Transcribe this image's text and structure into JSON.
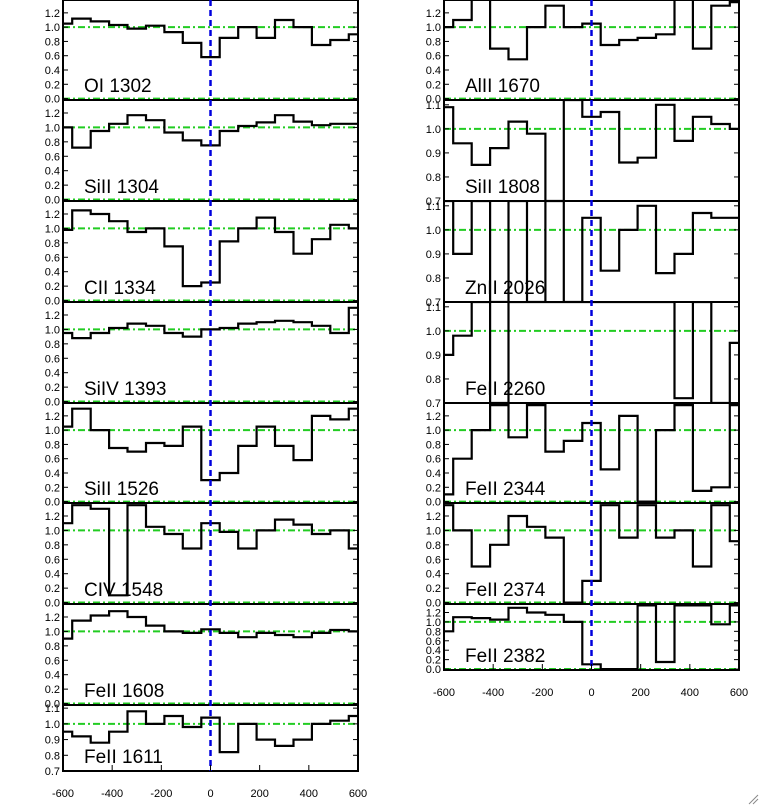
{
  "chart_data": {
    "type": "line",
    "x_range": [
      -600,
      600
    ],
    "x_ticks": [
      "-600",
      "-400",
      "-200",
      "0",
      "200",
      "400",
      "600"
    ],
    "zero_line_color": "#0000dd",
    "reference_line_color": "#22cc22",
    "line_color": "#000000",
    "left_column": [
      {
        "name": "OI 1302",
        "ylim": [
          -0.02,
          1.38
        ],
        "y_ticks": [
          0.0,
          0.2,
          0.4,
          0.6,
          0.8,
          1.0,
          1.2
        ],
        "tick_labels": [
          "0.0",
          "0.2",
          "0.4",
          "0.6",
          "0.8",
          "1.0",
          "1.2"
        ],
        "ref": [
          0.0,
          1.0
        ],
        "x": [
          -600,
          -525,
          -450,
          -375,
          -300,
          -225,
          -150,
          -75,
          0,
          75,
          150,
          225,
          300,
          375,
          450,
          525,
          600
        ],
        "y": [
          1.05,
          1.12,
          1.08,
          1.03,
          0.98,
          1.02,
          0.93,
          0.78,
          0.58,
          0.85,
          1.0,
          0.85,
          1.1,
          1.0,
          0.75,
          0.82,
          0.9
        ]
      },
      {
        "name": "SiII 1304",
        "ylim": [
          -0.02,
          1.38
        ],
        "y_ticks": [
          0.0,
          0.2,
          0.4,
          0.6,
          0.8,
          1.0,
          1.2
        ],
        "tick_labels": [
          "0.0",
          "0.2",
          "0.4",
          "0.6",
          "0.8",
          "1.0",
          "1.2"
        ],
        "ref": [
          0.0,
          1.0
        ],
        "x": [
          -600,
          -525,
          -450,
          -375,
          -300,
          -225,
          -150,
          -75,
          0,
          75,
          150,
          225,
          300,
          375,
          450,
          525,
          600
        ],
        "y": [
          1.0,
          0.72,
          0.95,
          1.05,
          1.17,
          1.1,
          0.93,
          0.82,
          0.75,
          0.95,
          1.02,
          1.07,
          1.17,
          1.08,
          1.03,
          1.05,
          1.05
        ]
      },
      {
        "name": "CII 1334",
        "ylim": [
          -0.02,
          1.38
        ],
        "y_ticks": [
          0.0,
          0.2,
          0.4,
          0.6,
          0.8,
          1.0,
          1.2
        ],
        "tick_labels": [
          "0.0",
          "0.2",
          "0.4",
          "0.6",
          "0.8",
          "1.0",
          "1.2"
        ],
        "ref": [
          0.0,
          1.0
        ],
        "x": [
          -600,
          -525,
          -450,
          -375,
          -300,
          -225,
          -150,
          -75,
          0,
          75,
          150,
          225,
          300,
          375,
          450,
          525,
          600
        ],
        "y": [
          0.98,
          1.25,
          1.2,
          1.1,
          0.95,
          1.0,
          0.75,
          0.2,
          0.25,
          0.82,
          1.0,
          1.15,
          0.95,
          0.65,
          0.85,
          1.05,
          1.0
        ]
      },
      {
        "name": "SiIV 1393",
        "ylim": [
          -0.02,
          1.38
        ],
        "y_ticks": [
          0.0,
          0.2,
          0.4,
          0.6,
          0.8,
          1.0,
          1.2
        ],
        "tick_labels": [
          "0.0",
          "0.2",
          "0.4",
          "0.6",
          "0.8",
          "1.0",
          "1.2"
        ],
        "ref": [
          0.0,
          1.0
        ],
        "x": [
          -600,
          -525,
          -450,
          -375,
          -300,
          -225,
          -150,
          -75,
          0,
          75,
          150,
          225,
          300,
          375,
          450,
          525,
          600
        ],
        "y": [
          0.95,
          0.88,
          0.95,
          1.02,
          1.08,
          1.05,
          0.95,
          0.9,
          1.0,
          1.02,
          1.08,
          1.1,
          1.12,
          1.1,
          1.05,
          0.95,
          1.3
        ]
      },
      {
        "name": "SiII 1526",
        "ylim": [
          -0.02,
          1.38
        ],
        "y_ticks": [
          0.0,
          0.2,
          0.4,
          0.6,
          0.8,
          1.0,
          1.2
        ],
        "tick_labels": [
          "0.0",
          "0.2",
          "0.4",
          "0.6",
          "0.8",
          "1.0",
          "1.2"
        ],
        "ref": [
          0.0,
          1.0
        ],
        "x": [
          -600,
          -525,
          -450,
          -375,
          -300,
          -225,
          -150,
          -75,
          0,
          75,
          150,
          225,
          300,
          375,
          450,
          525,
          600
        ],
        "y": [
          1.05,
          1.3,
          1.0,
          0.75,
          0.7,
          0.82,
          0.78,
          1.05,
          0.3,
          0.4,
          0.78,
          1.05,
          0.78,
          0.58,
          1.2,
          1.15,
          1.3
        ]
      },
      {
        "name": "CIV 1548",
        "ylim": [
          -0.02,
          1.38
        ],
        "y_ticks": [
          0.0,
          0.2,
          0.4,
          0.6,
          0.8,
          1.0,
          1.2
        ],
        "tick_labels": [
          "0.0",
          "0.2",
          "0.4",
          "0.6",
          "0.8",
          "1.0",
          "1.2"
        ],
        "ref": [
          0.0,
          1.0
        ],
        "x": [
          -600,
          -525,
          -450,
          -375,
          -300,
          -225,
          -150,
          -75,
          0,
          75,
          150,
          225,
          300,
          375,
          450,
          525,
          600
        ],
        "y": [
          1.1,
          1.35,
          1.3,
          0.1,
          1.35,
          1.05,
          0.95,
          0.75,
          1.1,
          0.98,
          0.75,
          1.0,
          1.15,
          1.08,
          0.95,
          1.0,
          0.75
        ]
      },
      {
        "name": "FeII 1608",
        "ylim": [
          -0.02,
          1.38
        ],
        "y_ticks": [
          0.0,
          0.2,
          0.4,
          0.6,
          0.8,
          1.0,
          1.2
        ],
        "tick_labels": [
          "0.0",
          "0.2",
          "0.4",
          "0.6",
          "0.8",
          "1.0",
          "1.2"
        ],
        "ref": [
          0.0,
          1.0
        ],
        "x": [
          -600,
          -525,
          -450,
          -375,
          -300,
          -225,
          -150,
          -75,
          0,
          75,
          150,
          225,
          300,
          375,
          450,
          525,
          600
        ],
        "y": [
          0.9,
          1.15,
          1.22,
          1.28,
          1.2,
          1.08,
          1.0,
          0.98,
          1.03,
          0.98,
          0.92,
          0.98,
          0.95,
          0.92,
          0.98,
          1.02,
          1.0
        ]
      },
      {
        "name": "FeII 1611",
        "ylim": [
          0.7,
          1.12
        ],
        "y_ticks": [
          0.7,
          0.8,
          0.9,
          1.0,
          1.1
        ],
        "tick_labels": [
          "0.7",
          "0.8",
          "0.9",
          "1.0",
          "1.1"
        ],
        "ref": [
          1.0
        ],
        "x": [
          -600,
          -525,
          -450,
          -375,
          -300,
          -225,
          -150,
          -75,
          0,
          75,
          150,
          225,
          300,
          375,
          450,
          525,
          600
        ],
        "y": [
          0.95,
          0.92,
          0.88,
          0.95,
          1.08,
          1.0,
          1.05,
          0.98,
          1.04,
          0.82,
          1.0,
          0.9,
          0.86,
          0.9,
          1.0,
          1.02,
          1.05
        ]
      }
    ],
    "right_column": [
      {
        "name": "AlII 1670",
        "ylim": [
          -0.02,
          1.38
        ],
        "y_ticks": [
          0.0,
          0.2,
          0.4,
          0.6,
          0.8,
          1.0,
          1.2
        ],
        "tick_labels": [
          "0.0",
          "0.2",
          "0.4",
          "0.6",
          "0.8",
          "1.0",
          "1.2"
        ],
        "ref": [
          0.0,
          1.0
        ],
        "x": [
          -600,
          -525,
          -450,
          -375,
          -300,
          -225,
          -150,
          -75,
          0,
          75,
          150,
          225,
          300,
          375,
          450,
          525,
          600
        ],
        "y": [
          1.0,
          1.1,
          1.4,
          0.7,
          0.55,
          1.0,
          1.3,
          1.0,
          1.05,
          0.75,
          0.82,
          0.85,
          0.9,
          1.4,
          0.7,
          1.3,
          1.35
        ]
      },
      {
        "name": "SiII 1808",
        "ylim": [
          0.7,
          1.12
        ],
        "y_ticks": [
          0.7,
          0.8,
          0.9,
          1.0,
          1.1
        ],
        "tick_labels": [
          "0.7",
          "0.8",
          "0.9",
          "1.0",
          "1.1"
        ],
        "ref": [
          1.0
        ],
        "x": [
          -600,
          -525,
          -450,
          -375,
          -300,
          -225,
          -150,
          -75,
          0,
          75,
          150,
          225,
          300,
          375,
          450,
          525,
          600
        ],
        "y": [
          1.09,
          0.94,
          0.85,
          0.92,
          1.03,
          0.98,
          0.7,
          1.12,
          1.05,
          1.07,
          0.86,
          0.88,
          1.1,
          0.95,
          1.05,
          1.02,
          1.0
        ]
      },
      {
        "name": "ZnII 2026",
        "ylim": [
          0.7,
          1.12
        ],
        "y_ticks": [
          0.7,
          0.8,
          0.9,
          1.0,
          1.1
        ],
        "tick_labels": [
          "0.7",
          "0.8",
          "0.9",
          "1.0",
          "1.1"
        ],
        "ref": [
          1.0
        ],
        "x": [
          -600,
          -525,
          -450,
          -375,
          -300,
          -225,
          -150,
          -75,
          0,
          75,
          150,
          225,
          300,
          375,
          450,
          525,
          600
        ],
        "y": [
          1.12,
          0.9,
          1.12,
          0.7,
          1.12,
          0.7,
          1.12,
          0.7,
          1.05,
          0.83,
          1.0,
          1.1,
          0.82,
          0.9,
          1.07,
          1.05,
          1.05
        ]
      },
      {
        "name": "FeII 2260",
        "ylim": [
          0.7,
          1.12
        ],
        "y_ticks": [
          0.7,
          0.8,
          0.9,
          1.0,
          1.1
        ],
        "tick_labels": [
          "0.7",
          "0.8",
          "0.9",
          "1.0",
          "1.1"
        ],
        "ref": [
          1.0
        ],
        "x": [
          -600,
          -525,
          -450,
          -375,
          -300,
          -225,
          -150,
          -75,
          0,
          75,
          150,
          225,
          300,
          375,
          450,
          525,
          600
        ],
        "y": [
          0.9,
          0.98,
          1.12,
          0.7,
          1.12,
          1.12,
          1.12,
          1.12,
          1.12,
          1.12,
          1.12,
          1.12,
          1.12,
          0.72,
          1.12,
          0.7,
          0.95
        ]
      },
      {
        "name": "FeII 2344",
        "ylim": [
          -0.02,
          1.38
        ],
        "y_ticks": [
          0.0,
          0.2,
          0.4,
          0.6,
          0.8,
          1.0,
          1.2
        ],
        "tick_labels": [
          "0.0",
          "0.2",
          "0.4",
          "0.6",
          "0.8",
          "1.0",
          "1.2"
        ],
        "ref": [
          0.0,
          1.0
        ],
        "x": [
          -600,
          -525,
          -450,
          -375,
          -300,
          -225,
          -150,
          -75,
          0,
          75,
          150,
          225,
          300,
          375,
          450,
          525,
          600
        ],
        "y": [
          0.1,
          0.6,
          1.0,
          1.35,
          0.9,
          1.35,
          0.7,
          0.85,
          1.1,
          0.45,
          1.2,
          0.0,
          1.0,
          1.35,
          0.15,
          0.2,
          1.35
        ]
      },
      {
        "name": "FeII 2374",
        "ylim": [
          -0.02,
          1.38
        ],
        "y_ticks": [
          0.0,
          0.2,
          0.4,
          0.6,
          0.8,
          1.0,
          1.2
        ],
        "tick_labels": [
          "0.0",
          "0.2",
          "0.4",
          "0.6",
          "0.8",
          "1.0",
          "1.2"
        ],
        "ref": [
          0.0,
          1.0
        ],
        "x": [
          -600,
          -525,
          -450,
          -375,
          -300,
          -225,
          -150,
          -75,
          0,
          75,
          150,
          225,
          300,
          375,
          450,
          525,
          600
        ],
        "y": [
          1.35,
          1.0,
          0.5,
          0.8,
          1.2,
          1.05,
          0.9,
          0.0,
          0.3,
          1.35,
          0.9,
          1.35,
          0.9,
          1.0,
          0.5,
          1.35,
          0.85
        ]
      },
      {
        "name": "FeII 2382",
        "ylim": [
          -0.02,
          1.38
        ],
        "y_ticks": [
          0.0,
          0.2,
          0.4,
          0.6,
          0.8,
          1.0,
          1.2
        ],
        "tick_labels": [
          "0.0",
          "0.2",
          "0.4",
          "0.6",
          "0.8",
          "1.0",
          "1.2"
        ],
        "ref": [
          0.0,
          1.0
        ],
        "x": [
          -600,
          -525,
          -450,
          -375,
          -300,
          -225,
          -150,
          -75,
          0,
          75,
          150,
          225,
          300,
          375,
          450,
          525,
          600
        ],
        "y": [
          0.8,
          1.1,
          1.08,
          1.05,
          1.3,
          1.2,
          1.15,
          1.0,
          0.1,
          0.0,
          0.0,
          1.35,
          0.15,
          1.35,
          1.35,
          0.95,
          1.35
        ]
      }
    ]
  }
}
